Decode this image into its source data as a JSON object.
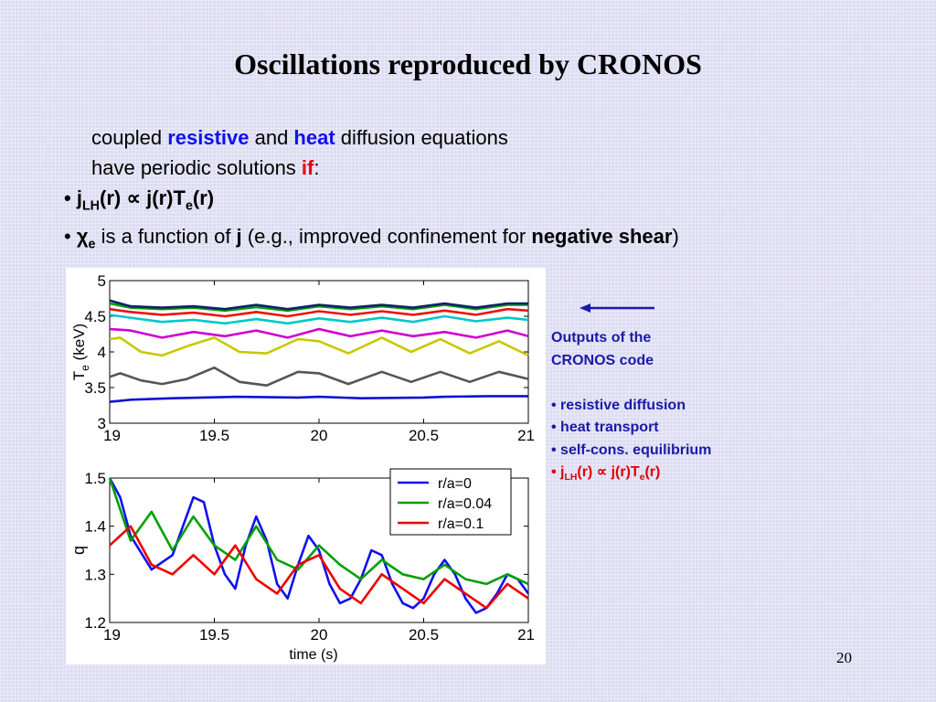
{
  "slide": {
    "title": "Oscillations reproduced by CRONOS",
    "intro_line1": {
      "pre": "coupled ",
      "w1": "resistive",
      "mid": " and ",
      "w2": "heat",
      "post": " diffusion equations"
    },
    "intro_line2": {
      "pre": "have periodic solutions ",
      "em": "if",
      "post": ":"
    },
    "bullet1": {
      "j": "j",
      "sub": "LH",
      "rest": "(r) ∝ j(r)T",
      "sub2": "e",
      "end": "(r)"
    },
    "bullet2": {
      "chi": "χ",
      "sub": "e",
      "pre": " is a function of ",
      "j": "j",
      "mid": " (e.g., improved confinement for ",
      "neg": "negative shear",
      "post": ")"
    },
    "side": {
      "heading1": "Outputs of the",
      "heading2": "CRONOS code",
      "items": [
        "resistive diffusion",
        "heat transport",
        "self-cons. equilibrium"
      ],
      "last": {
        "j": "j",
        "sub": "LH",
        "rest": "(r) ∝ j(r)T",
        "sub2": "e",
        "end": "(r)"
      }
    },
    "page_number": "20",
    "colors": {
      "background": "#dcdcf2",
      "accent_blue": "#1010ee",
      "accent_red": "#ee0000",
      "arrow": "#1a1aa6"
    }
  },
  "chart_data": [
    {
      "type": "line",
      "ylabel": "T_e (keV)",
      "xlabel": "",
      "xlim": [
        19,
        21
      ],
      "ylim": [
        3,
        5
      ],
      "x_ticks": [
        "19",
        "19.5",
        "20",
        "20.5",
        "21"
      ],
      "y_ticks": [
        "3",
        "3.5",
        "4",
        "4.5",
        "5"
      ],
      "series": [
        {
          "color": "#1010d8",
          "x": [
            19.0,
            19.1,
            19.3,
            19.6,
            19.9,
            20.0,
            20.2,
            20.5,
            20.6,
            20.8,
            21.0
          ],
          "y": [
            3.3,
            3.33,
            3.35,
            3.37,
            3.36,
            3.37,
            3.35,
            3.36,
            3.37,
            3.38,
            3.38
          ]
        },
        {
          "color": "#555555",
          "x": [
            19.0,
            19.05,
            19.15,
            19.25,
            19.37,
            19.5,
            19.62,
            19.75,
            19.9,
            20.0,
            20.14,
            20.3,
            20.44,
            20.58,
            20.72,
            20.86,
            21.0
          ],
          "y": [
            3.65,
            3.7,
            3.6,
            3.55,
            3.62,
            3.78,
            3.58,
            3.53,
            3.72,
            3.7,
            3.55,
            3.72,
            3.58,
            3.72,
            3.58,
            3.72,
            3.62
          ]
        },
        {
          "color": "#c8c800",
          "x": [
            19.0,
            19.05,
            19.15,
            19.25,
            19.37,
            19.5,
            19.62,
            19.75,
            19.9,
            20.0,
            20.14,
            20.3,
            20.44,
            20.58,
            20.72,
            20.86,
            21.0
          ],
          "y": [
            4.18,
            4.2,
            4.0,
            3.95,
            4.08,
            4.2,
            4.0,
            3.98,
            4.18,
            4.15,
            3.98,
            4.2,
            4.0,
            4.18,
            3.98,
            4.15,
            3.95
          ]
        },
        {
          "color": "#d000d0",
          "x": [
            19.0,
            19.1,
            19.25,
            19.4,
            19.55,
            19.7,
            19.85,
            20.0,
            20.15,
            20.3,
            20.45,
            20.6,
            20.75,
            20.9,
            21.0
          ],
          "y": [
            4.32,
            4.3,
            4.2,
            4.28,
            4.22,
            4.3,
            4.2,
            4.32,
            4.22,
            4.3,
            4.22,
            4.28,
            4.2,
            4.3,
            4.22
          ]
        },
        {
          "color": "#00c8c8",
          "x": [
            19.0,
            19.1,
            19.25,
            19.4,
            19.55,
            19.7,
            19.85,
            20.0,
            20.15,
            20.3,
            20.45,
            20.6,
            20.75,
            20.9,
            21.0
          ],
          "y": [
            4.52,
            4.48,
            4.42,
            4.45,
            4.4,
            4.46,
            4.4,
            4.47,
            4.42,
            4.48,
            4.42,
            4.5,
            4.43,
            4.48,
            4.45
          ]
        },
        {
          "color": "#ee1010",
          "x": [
            19.0,
            19.1,
            19.25,
            19.4,
            19.55,
            19.7,
            19.85,
            20.0,
            20.15,
            20.3,
            20.45,
            20.6,
            20.75,
            20.9,
            21.0
          ],
          "y": [
            4.6,
            4.56,
            4.52,
            4.55,
            4.5,
            4.56,
            4.5,
            4.57,
            4.52,
            4.57,
            4.52,
            4.58,
            4.52,
            4.6,
            4.58
          ]
        },
        {
          "color": "#00a000",
          "x": [
            19.0,
            19.1,
            19.25,
            19.4,
            19.55,
            19.7,
            19.85,
            20.0,
            20.15,
            20.3,
            20.45,
            20.6,
            20.75,
            20.9,
            21.0
          ],
          "y": [
            4.68,
            4.62,
            4.6,
            4.62,
            4.58,
            4.63,
            4.58,
            4.64,
            4.6,
            4.64,
            4.6,
            4.66,
            4.6,
            4.66,
            4.66
          ]
        },
        {
          "color": "#102070",
          "x": [
            19.0,
            19.1,
            19.25,
            19.4,
            19.55,
            19.7,
            19.85,
            20.0,
            20.15,
            20.3,
            20.45,
            20.6,
            20.75,
            20.9,
            21.0
          ],
          "y": [
            4.72,
            4.64,
            4.62,
            4.64,
            4.6,
            4.66,
            4.6,
            4.66,
            4.62,
            4.66,
            4.62,
            4.68,
            4.62,
            4.68,
            4.68
          ]
        }
      ]
    },
    {
      "type": "line",
      "ylabel": "q",
      "xlabel": "time (s)",
      "xlim": [
        19,
        21
      ],
      "ylim": [
        1.2,
        1.5
      ],
      "x_ticks": [
        "19",
        "19.5",
        "20",
        "20.5",
        "21"
      ],
      "y_ticks": [
        "1.2",
        "1.3",
        "1.4",
        "1.5"
      ],
      "legend_position": "top-right",
      "series": [
        {
          "name": "r/a=0",
          "color": "#1010ee",
          "x": [
            19.0,
            19.05,
            19.1,
            19.2,
            19.3,
            19.4,
            19.45,
            19.5,
            19.55,
            19.6,
            19.65,
            19.7,
            19.75,
            19.8,
            19.85,
            19.9,
            19.95,
            20.0,
            20.05,
            20.1,
            20.15,
            20.2,
            20.25,
            20.3,
            20.35,
            20.4,
            20.45,
            20.5,
            20.55,
            20.6,
            20.65,
            20.7,
            20.75,
            20.8,
            20.85,
            20.9,
            20.95,
            21.0
          ],
          "y": [
            1.5,
            1.46,
            1.38,
            1.31,
            1.34,
            1.46,
            1.45,
            1.36,
            1.3,
            1.27,
            1.36,
            1.42,
            1.37,
            1.28,
            1.25,
            1.32,
            1.38,
            1.35,
            1.28,
            1.24,
            1.25,
            1.29,
            1.35,
            1.34,
            1.28,
            1.24,
            1.23,
            1.25,
            1.3,
            1.33,
            1.3,
            1.25,
            1.22,
            1.23,
            1.26,
            1.3,
            1.29,
            1.26
          ]
        },
        {
          "name": "r/a=0.04",
          "color": "#00a000",
          "x": [
            19.0,
            19.1,
            19.2,
            19.3,
            19.4,
            19.5,
            19.6,
            19.7,
            19.8,
            19.9,
            20.0,
            20.1,
            20.2,
            20.3,
            20.4,
            20.5,
            20.6,
            20.7,
            20.8,
            20.9,
            21.0
          ],
          "y": [
            1.5,
            1.37,
            1.43,
            1.35,
            1.42,
            1.36,
            1.33,
            1.4,
            1.33,
            1.31,
            1.36,
            1.32,
            1.29,
            1.33,
            1.3,
            1.29,
            1.32,
            1.29,
            1.28,
            1.3,
            1.28
          ]
        },
        {
          "name": "r/a=0.1",
          "color": "#ee0000",
          "x": [
            19.0,
            19.1,
            19.2,
            19.3,
            19.4,
            19.5,
            19.6,
            19.7,
            19.8,
            19.9,
            20.0,
            20.1,
            20.2,
            20.3,
            20.4,
            20.5,
            20.6,
            20.7,
            20.8,
            20.9,
            21.0
          ],
          "y": [
            1.36,
            1.4,
            1.32,
            1.3,
            1.34,
            1.3,
            1.36,
            1.29,
            1.26,
            1.32,
            1.34,
            1.27,
            1.24,
            1.3,
            1.27,
            1.24,
            1.29,
            1.26,
            1.23,
            1.28,
            1.25
          ]
        }
      ]
    }
  ]
}
